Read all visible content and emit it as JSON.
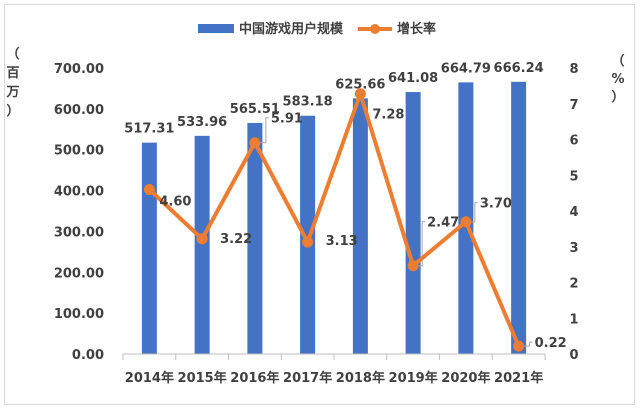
{
  "chart_data": {
    "type": "bar+line",
    "categories": [
      "2014年",
      "2015年",
      "2016年",
      "2017年",
      "2018年",
      "2019年",
      "2020年",
      "2021年"
    ],
    "series": [
      {
        "name": "中国游戏用户规模",
        "type": "bar",
        "axis": "left",
        "values": [
          517.31,
          533.96,
          565.51,
          583.18,
          625.66,
          641.08,
          664.79,
          666.24
        ],
        "labels": [
          "517.31",
          "533.96",
          "565.51",
          "583.18",
          "625.66",
          "641.08",
          "664.79",
          "666.24"
        ],
        "color": "#4472c4"
      },
      {
        "name": "增长率",
        "type": "line",
        "axis": "right",
        "values": [
          4.6,
          3.22,
          5.91,
          3.13,
          7.28,
          2.47,
          3.7,
          0.22
        ],
        "labels": [
          "4.60",
          "3.22",
          "5.91",
          "3.13",
          "7.28",
          "2.47",
          "3.70",
          "0.22"
        ],
        "color": "#ed7d31"
      }
    ],
    "y_left": {
      "unit_chars": [
        "（",
        "百",
        "万",
        "）"
      ],
      "ylim": [
        0,
        700
      ],
      "ticks": [
        0,
        100,
        200,
        300,
        400,
        500,
        600,
        700
      ],
      "tick_labels": [
        "0.00",
        "100.00",
        "200.00",
        "300.00",
        "400.00",
        "500.00",
        "600.00",
        "700.00"
      ]
    },
    "y_right": {
      "unit_chars": [
        "（",
        "%",
        "）"
      ],
      "ylim": [
        0,
        8
      ],
      "ticks": [
        0,
        1,
        2,
        3,
        4,
        5,
        6,
        7,
        8
      ],
      "tick_labels": [
        "0",
        "1",
        "2",
        "3",
        "4",
        "5",
        "6",
        "7",
        "8"
      ]
    },
    "legend_position": "top-center",
    "grid": false
  }
}
